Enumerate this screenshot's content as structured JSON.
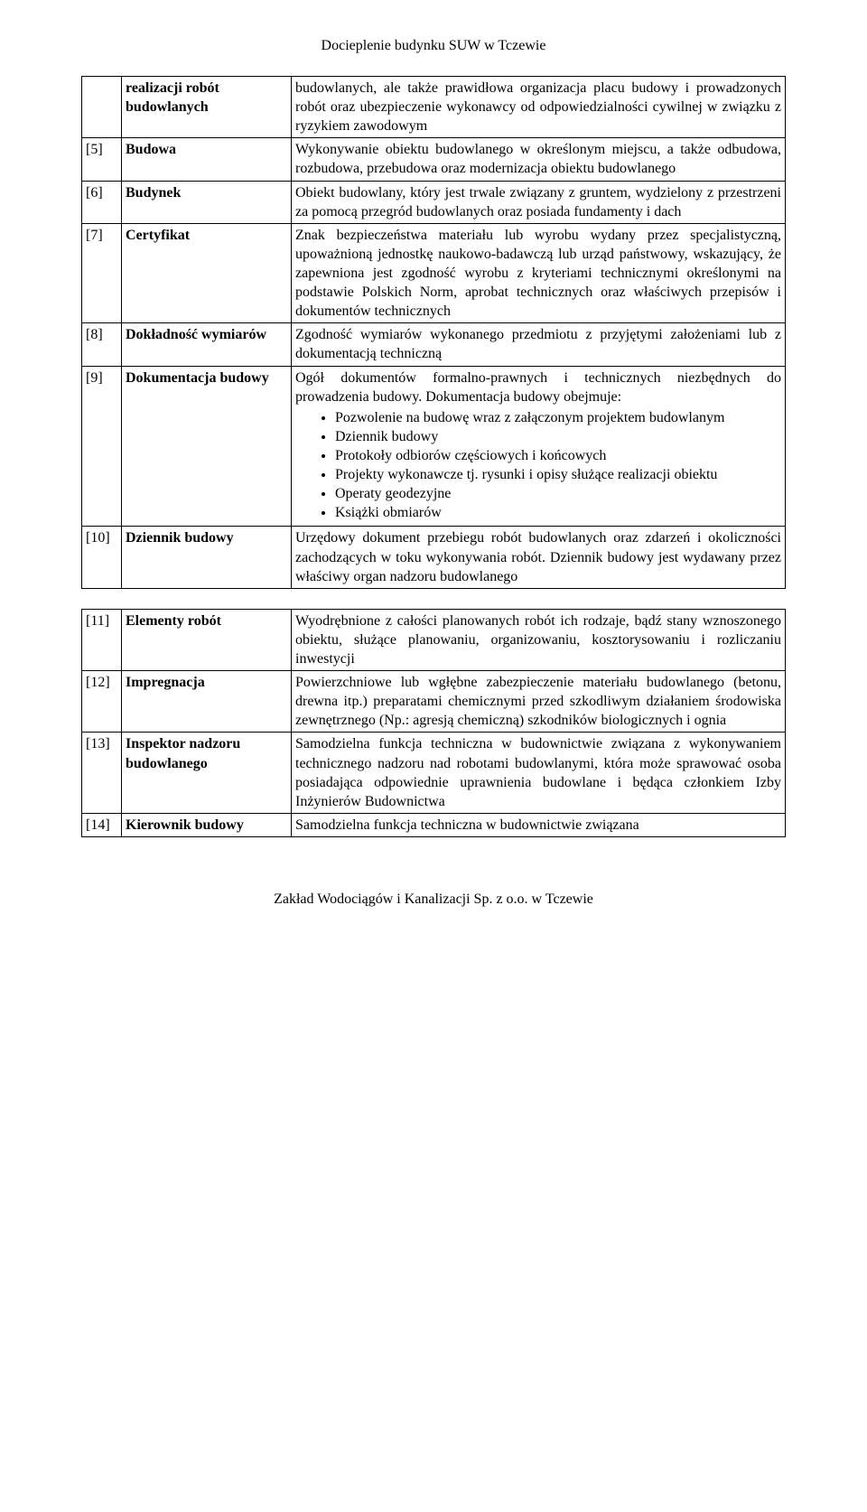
{
  "header": "Docieplenie budynku SUW w Tczewie",
  "footer": "Zakład Wodociągów i Kanalizacji Sp. z o.o. w Tczewie",
  "table1": [
    {
      "num": "",
      "term": "realizacji robót budowlanych",
      "desc": "budowlanych, ale także prawidłowa organizacja placu budowy i prowadzonych robót oraz ubezpieczenie wykonawcy od odpowiedzialności cywilnej w związku z ryzykiem zawodowym"
    },
    {
      "num": "[5]",
      "term": "Budowa",
      "desc": "Wykonywanie obiektu budowlanego w określonym miejscu, a także odbudowa, rozbudowa, przebudowa oraz modernizacja obiektu budowlanego"
    },
    {
      "num": "[6]",
      "term": "Budynek",
      "desc": "Obiekt budowlany, który jest trwale związany z gruntem, wydzielony z przestrzeni za pomocą przegród budowlanych oraz posiada fundamenty i dach"
    },
    {
      "num": "[7]",
      "term": "Certyfikat",
      "desc": "Znak bezpieczeństwa materiału lub wyrobu wydany przez specjalistyczną, upoważnioną jednostkę naukowo-badawczą lub urząd państwowy, wskazujący, że zapewniona jest zgodność wyrobu z kryteriami technicznymi określonymi na podstawie Polskich Norm, aprobat technicznych oraz właściwych przepisów i dokumentów technicznych"
    },
    {
      "num": "[8]",
      "term": "Dokładność wymiarów",
      "desc": "Zgodność wymiarów wykonanego przedmiotu z przyjętymi założeniami lub z dokumentacją techniczną"
    },
    {
      "num": "[9]",
      "term": "Dokumentacja budowy",
      "desc_pre": "Ogół dokumentów formalno-prawnych i technicznych niezbędnych do prowadzenia budowy. Dokumentacja budowy obejmuje:",
      "bullets": [
        "Pozwolenie na budowę wraz z załączonym projektem budowlanym",
        "Dziennik budowy",
        "Protokoły odbiorów częściowych i końcowych",
        "Projekty wykonawcze tj. rysunki i opisy służące realizacji obiektu",
        "Operaty geodezyjne",
        "Książki obmiarów"
      ]
    },
    {
      "num": "[10]",
      "term": "Dziennik budowy",
      "desc": "Urzędowy dokument przebiegu robót budowlanych oraz zdarzeń i okoliczności zachodzących w toku wykonywania robót. Dziennik budowy jest wydawany przez właściwy organ nadzoru budowlanego"
    }
  ],
  "table2": [
    {
      "num": "[11]",
      "term": "Elementy robót",
      "desc": "Wyodrębnione z całości planowanych robót ich rodzaje, bądź stany wznoszonego obiektu, służące planowaniu, organizowaniu, kosztorysowaniu i rozliczaniu inwestycji"
    },
    {
      "num": "[12]",
      "term": "Impregnacja",
      "desc": "Powierzchniowe lub wgłębne zabezpieczenie materiału budowlanego (betonu, drewna itp.) preparatami chemicznymi przed szkodliwym działaniem środowiska zewnętrznego (Np.: agresją chemiczną) szkodników biologicznych i ognia"
    },
    {
      "num": "[13]",
      "term": "Inspektor nadzoru budowlanego",
      "desc": "Samodzielna funkcja techniczna w budownictwie związana z wykonywaniem technicznego nadzoru nad robotami budowlanymi, która może sprawować osoba posiadająca odpowiednie uprawnienia budowlane i będąca członkiem Izby Inżynierów Budownictwa"
    },
    {
      "num": "[14]",
      "term": "Kierownik budowy",
      "desc": "Samodzielna funkcja techniczna w budownictwie związana"
    }
  ]
}
